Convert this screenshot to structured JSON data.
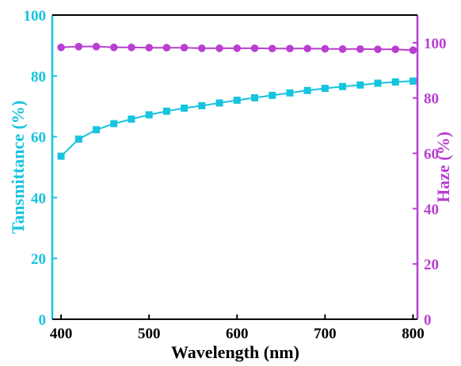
{
  "chart_data": {
    "type": "line",
    "title": "",
    "xlabel": "Wavelength (nm)",
    "xlim": [
      390,
      805
    ],
    "xticks": [
      400,
      500,
      600,
      700,
      800
    ],
    "grid": false,
    "legend": "none",
    "series": [
      {
        "name": "",
        "axis": "left",
        "ylabel": "Tansmittance (%)",
        "ylim": [
          0,
          100
        ],
        "yticks": [
          0,
          20,
          40,
          60,
          80,
          100
        ],
        "color": "#16c4df",
        "marker": "square",
        "x": [
          400,
          420,
          440,
          460,
          480,
          500,
          520,
          540,
          560,
          580,
          600,
          620,
          640,
          660,
          680,
          700,
          720,
          740,
          760,
          780,
          800
        ],
        "values": [
          53.6,
          59.2,
          62.3,
          64.3,
          65.8,
          67.2,
          68.4,
          69.4,
          70.2,
          71.1,
          72.0,
          72.8,
          73.6,
          74.4,
          75.2,
          75.9,
          76.5,
          77.0,
          77.6,
          78.0,
          78.3
        ]
      },
      {
        "name": "",
        "axis": "right",
        "ylabel": "Haze (%)",
        "ylim": [
          0,
          110
        ],
        "yticks": [
          0,
          20,
          40,
          60,
          80,
          100
        ],
        "color": "#b83fd0",
        "marker": "circle",
        "x": [
          400,
          420,
          440,
          460,
          480,
          500,
          520,
          540,
          560,
          580,
          600,
          620,
          640,
          660,
          680,
          700,
          720,
          740,
          760,
          780,
          800
        ],
        "values": [
          98.3,
          98.6,
          98.6,
          98.3,
          98.3,
          98.2,
          98.2,
          98.2,
          98.0,
          98.0,
          98.0,
          98.0,
          97.9,
          97.9,
          97.9,
          97.8,
          97.7,
          97.7,
          97.6,
          97.6,
          97.3
        ]
      }
    ]
  }
}
